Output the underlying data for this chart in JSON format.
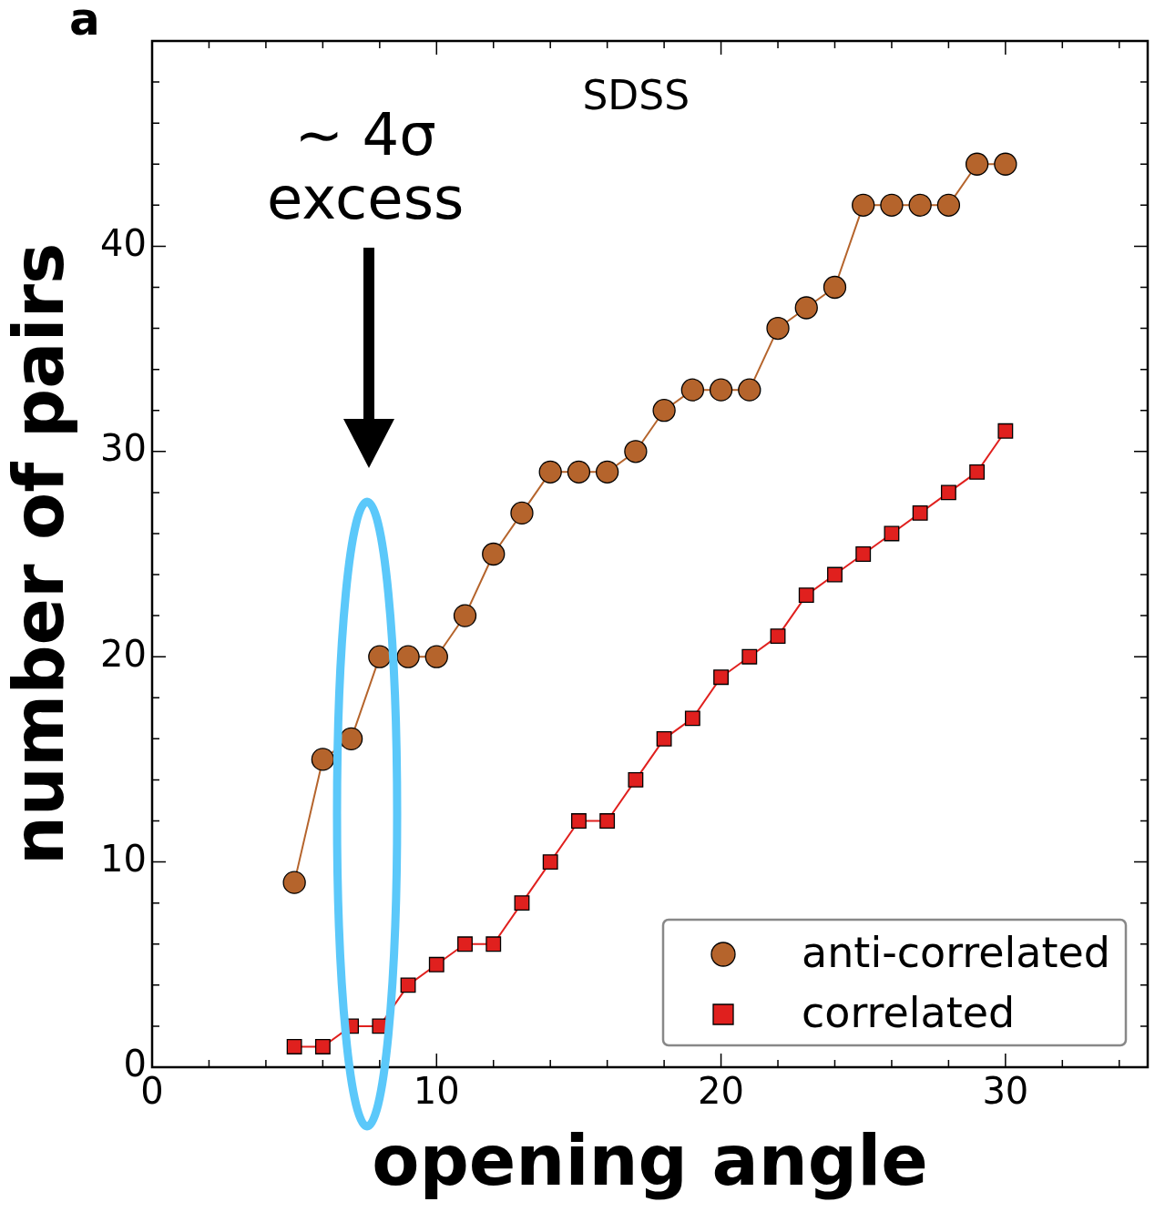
{
  "chart_data": {
    "type": "line",
    "xlabel": "opening angle",
    "ylabel": "number of pairs",
    "annotations": [
      "a",
      "SDSS",
      "∼ 4σ excess"
    ],
    "x": [
      5,
      6,
      7,
      8,
      9,
      10,
      11,
      12,
      13,
      14,
      15,
      16,
      17,
      18,
      19,
      20,
      21,
      22,
      23,
      24,
      25,
      26,
      27,
      28,
      29,
      30
    ],
    "series": [
      {
        "name": "anti-correlated",
        "color": "#b5642c",
        "marker": "circle",
        "values": [
          9,
          15,
          16,
          20,
          20,
          20,
          22,
          25,
          27,
          29,
          29,
          29,
          30,
          32,
          33,
          33,
          33,
          36,
          37,
          38,
          42,
          42,
          42,
          42,
          44,
          44
        ]
      },
      {
        "name": "correlated",
        "color": "#e0201e",
        "marker": "square",
        "values": [
          1,
          1,
          2,
          2,
          4,
          5,
          6,
          6,
          8,
          10,
          12,
          12,
          14,
          16,
          17,
          19,
          20,
          21,
          23,
          24,
          25,
          26,
          27,
          28,
          29,
          31
        ]
      }
    ],
    "xlim": [
      0,
      35
    ],
    "xticks": [
      0,
      {
        "value": 2,
        "label": null
      },
      {
        "value": 4,
        "label": null
      },
      {
        "value": 6,
        "label": null
      },
      {
        "value": 8,
        "label": null
      },
      10,
      {
        "value": 12,
        "label": null
      },
      {
        "value": 14,
        "label": null
      },
      {
        "value": 16,
        "label": null
      },
      {
        "value": 18,
        "label": null
      },
      20,
      {
        "value": 22,
        "label": null
      },
      {
        "value": 24,
        "label": null
      },
      {
        "value": 26,
        "label": null
      },
      {
        "value": 28,
        "label": null
      },
      30,
      {
        "value": 32,
        "label": null
      },
      {
        "value": 34,
        "label": null
      }
    ],
    "ylim": [
      0,
      50
    ],
    "yticks": [
      0,
      {
        "value": 2,
        "label": null
      },
      {
        "value": 4,
        "label": null
      },
      {
        "value": 6,
        "label": null
      },
      {
        "value": 8,
        "label": null
      },
      10,
      {
        "value": 12,
        "label": null
      },
      {
        "value": 14,
        "label": null
      },
      {
        "value": 16,
        "label": null
      },
      {
        "value": 18,
        "label": null
      },
      20,
      {
        "value": 22,
        "label": null
      },
      {
        "value": 24,
        "label": null
      },
      {
        "value": 26,
        "label": null
      },
      {
        "value": 28,
        "label": null
      },
      30,
      {
        "value": 32,
        "label": null
      },
      {
        "value": 34,
        "label": null
      },
      {
        "value": 36,
        "label": null
      },
      {
        "value": 38,
        "label": null
      },
      40,
      {
        "value": 42,
        "label": null
      },
      {
        "value": 44,
        "label": null
      },
      {
        "value": 46,
        "label": null
      },
      {
        "value": 48,
        "label": null
      }
    ],
    "grid": false,
    "legend": "bottom right",
    "line_style": "solid"
  }
}
